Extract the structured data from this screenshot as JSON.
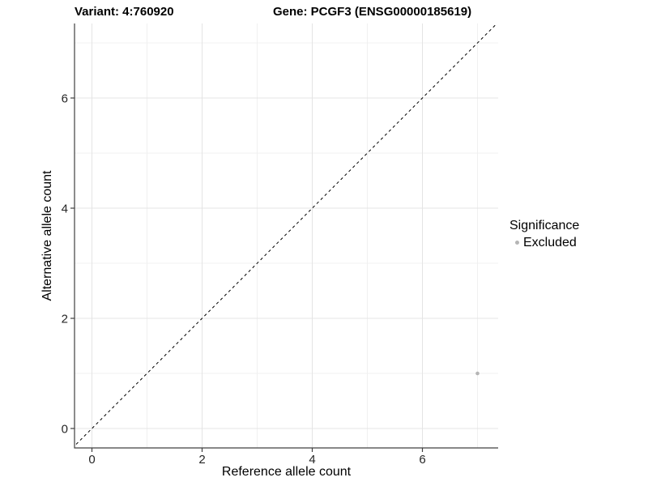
{
  "title": {
    "variant": "Variant: 4:760920",
    "gene": "Gene: PCGF3 (ENSG00000185619)"
  },
  "axes": {
    "x": {
      "label": "Reference allele count"
    },
    "y": {
      "label": "Alternative allele count"
    }
  },
  "legend": {
    "title": "Significance",
    "items": [
      {
        "label": "Excluded",
        "color": "#b5b5b5"
      }
    ]
  },
  "colors": {
    "point": "#b5b5b5",
    "grid_major": "#e4e4e4",
    "grid_minor": "#f0f0f0",
    "axis_line": "#404040",
    "tick_label": "#262626",
    "dashed_line": "#000000",
    "background": "#ffffff"
  },
  "chart_data": {
    "type": "scatter",
    "titles": [
      "Variant: 4:760920",
      "Gene: PCGF3 (ENSG00000185619)"
    ],
    "xlabel": "Reference allele count",
    "ylabel": "Alternative allele count",
    "xlim": [
      -0.36,
      7.35
    ],
    "ylim": [
      -0.36,
      7.35
    ],
    "x_ticks": [
      0,
      2,
      4,
      6
    ],
    "y_ticks": [
      0,
      2,
      4,
      6
    ],
    "x_minor_gridlines": [
      1,
      3,
      5,
      7
    ],
    "y_minor_gridlines": [
      1,
      3,
      5,
      7
    ],
    "grid": true,
    "legend_position": "right",
    "reference_line": {
      "type": "identity",
      "style": "dashed",
      "from": [
        -0.36,
        -0.36
      ],
      "to": [
        7.35,
        7.35
      ]
    },
    "series": [
      {
        "name": "Excluded",
        "color": "#b5b5b5",
        "points": [
          [
            7,
            1
          ]
        ]
      }
    ]
  }
}
